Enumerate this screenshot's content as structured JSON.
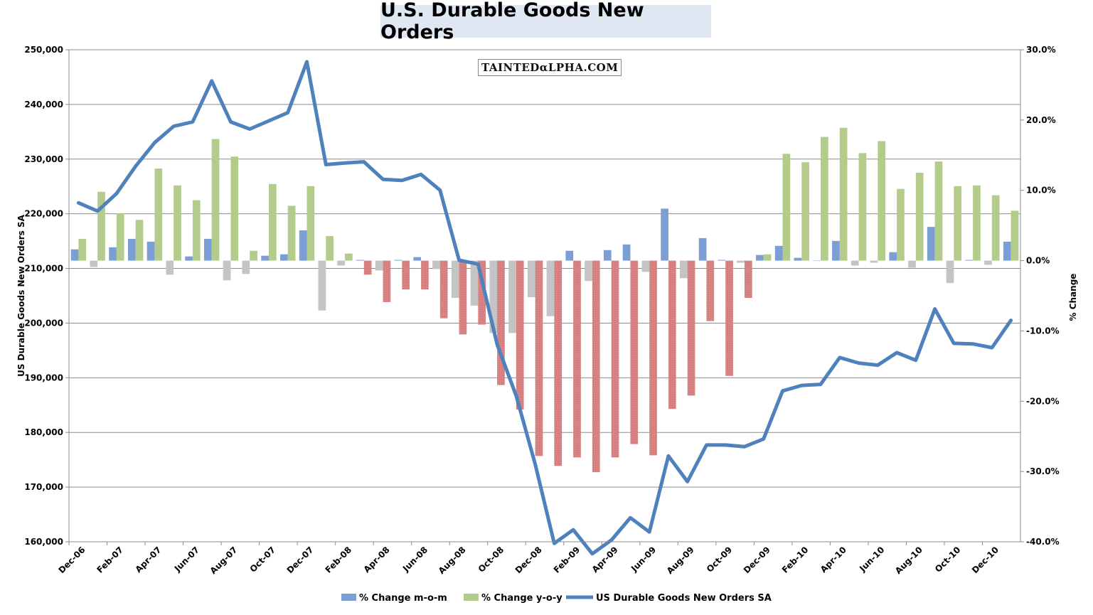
{
  "chart_data": {
    "type": "bar",
    "title": "U.S. Durable Goods New Orders",
    "ylabel": "US Durable Goods New Orders SA",
    "y2label": "% Change",
    "ylim": [
      160000,
      250000
    ],
    "y2lim": [
      -40,
      30
    ],
    "yticks": [
      "160,000",
      "170,000",
      "180,000",
      "190,000",
      "200,000",
      "210,000",
      "220,000",
      "230,000",
      "240,000",
      "250,000"
    ],
    "y2ticks": [
      "-40.0%",
      "-30.0%",
      "-20.0%",
      "-10.0%",
      "0.0%",
      "10.0%",
      "20.0%",
      "30.0%"
    ],
    "grid": true,
    "legend_position": "bottom",
    "x": [
      "Dec-06",
      "Jan-07",
      "Feb-07",
      "Mar-07",
      "Apr-07",
      "May-07",
      "Jun-07",
      "Jul-07",
      "Aug-07",
      "Sep-07",
      "Oct-07",
      "Nov-07",
      "Dec-07",
      "Jan-08",
      "Feb-08",
      "Mar-08",
      "Apr-08",
      "May-08",
      "Jun-08",
      "Jul-08",
      "Aug-08",
      "Sep-08",
      "Oct-08",
      "Nov-08",
      "Dec-08",
      "Jan-09",
      "Feb-09",
      "Mar-09",
      "Apr-09",
      "May-09",
      "Jun-09",
      "Jul-09",
      "Aug-09",
      "Sep-09",
      "Oct-09",
      "Nov-09",
      "Dec-09",
      "Jan-10",
      "Feb-10",
      "Mar-10",
      "Apr-10",
      "May-10",
      "Jun-10",
      "Jul-10",
      "Aug-10",
      "Sep-10",
      "Oct-10",
      "Nov-10",
      "Dec-10",
      "Jan-11"
    ],
    "xtick_labels": [
      "Dec-06",
      "Feb-07",
      "Apr-07",
      "Jun-07",
      "Aug-07",
      "Oct-07",
      "Dec-07",
      "Feb-08",
      "Apr-08",
      "Jun-08",
      "Aug-08",
      "Oct-08",
      "Dec-08",
      "Feb-09",
      "Apr-09",
      "Jun-09",
      "Aug-09",
      "Oct-09",
      "Dec-09",
      "Feb-10",
      "Apr-10",
      "Jun-10",
      "Aug-10",
      "Oct-10",
      "Dec-10"
    ],
    "series": [
      {
        "name": "% Change m-o-m",
        "type": "bar",
        "axis": "right",
        "values": [
          1.6,
          -0.9,
          1.9,
          3.1,
          2.7,
          -2.0,
          0.6,
          3.1,
          -2.8,
          -1.9,
          0.7,
          0.9,
          4.3,
          -7.1,
          -0.7,
          0.1,
          -1.4,
          0.1,
          0.5,
          -1.2,
          -5.3,
          -6.4,
          -10.3,
          -10.3,
          -5.2,
          -7.9,
          1.4,
          -2.9,
          1.5,
          2.3,
          -1.6,
          7.4,
          -2.5,
          3.2,
          0.1,
          -0.3,
          0.8,
          2.1,
          0.4,
          0.0,
          2.8,
          -0.7,
          -0.3,
          1.2,
          -1.0,
          4.8,
          -3.2,
          0.1,
          -0.6,
          2.7
        ],
        "colors": [
          "#7b9fd4",
          "#c4c4c4",
          "#7b9fd4",
          "#7b9fd4",
          "#7b9fd4",
          "#c4c4c4",
          "#7b9fd4",
          "#7b9fd4",
          "#c4c4c4",
          "#c4c4c4",
          "#7b9fd4",
          "#7b9fd4",
          "#7b9fd4",
          "#c4c4c4",
          "#c4c4c4",
          "#7b9fd4",
          "#c4c4c4",
          "#7b9fd4",
          "#7b9fd4",
          "#c4c4c4",
          "#c4c4c4",
          "#c4c4c4",
          "#c4c4c4",
          "#c4c4c4",
          "#c4c4c4",
          "#c4c4c4",
          "#7b9fd4",
          "#c4c4c4",
          "#7b9fd4",
          "#7b9fd4",
          "#c4c4c4",
          "#7b9fd4",
          "#c4c4c4",
          "#7b9fd4",
          "#7b9fd4",
          "#c4c4c4",
          "#7b9fd4",
          "#7b9fd4",
          "#7b9fd4",
          "#7b9fd4",
          "#7b9fd4",
          "#c4c4c4",
          "#c4c4c4",
          "#7b9fd4",
          "#c4c4c4",
          "#7b9fd4",
          "#c4c4c4",
          "#7b9fd4",
          "#c4c4c4",
          "#7b9fd4"
        ]
      },
      {
        "name": "% Change y-o-y",
        "type": "bar",
        "axis": "right",
        "values": [
          3.1,
          9.8,
          6.7,
          5.8,
          13.1,
          10.7,
          8.6,
          17.3,
          14.8,
          1.4,
          10.9,
          7.8,
          10.6,
          3.5,
          1.0,
          -2.0,
          -5.9,
          -4.1,
          -4.1,
          -8.2,
          -10.5,
          -9.1,
          -17.7,
          -21.2,
          -27.8,
          -29.2,
          -28.0,
          -30.1,
          -28.0,
          -26.1,
          -27.7,
          -21.1,
          -19.2,
          -8.6,
          -16.4,
          -5.3,
          0.9,
          15.2,
          14.0,
          17.6,
          18.9,
          15.3,
          17.0,
          10.2,
          12.5,
          14.1,
          10.6,
          10.7,
          9.3,
          7.1
        ],
        "colors": [
          "#b3cc8c",
          "#b3cc8c",
          "#b3cc8c",
          "#b3cc8c",
          "#b3cc8c",
          "#b3cc8c",
          "#b3cc8c",
          "#b3cc8c",
          "#b3cc8c",
          "#b3cc8c",
          "#b3cc8c",
          "#b3cc8c",
          "#b3cc8c",
          "#b3cc8c",
          "#b3cc8c",
          "#d98484",
          "#d98484",
          "#d98484",
          "#d98484",
          "#d98484",
          "#d98484",
          "#d98484",
          "#d98484",
          "#d98484",
          "#d98484",
          "#d98484",
          "#d98484",
          "#d98484",
          "#d98484",
          "#d98484",
          "#d98484",
          "#d98484",
          "#d98484",
          "#d98484",
          "#d98484",
          "#d98484",
          "#b3cc8c",
          "#b3cc8c",
          "#b3cc8c",
          "#b3cc8c",
          "#b3cc8c",
          "#b3cc8c",
          "#b3cc8c",
          "#b3cc8c",
          "#b3cc8c",
          "#b3cc8c",
          "#b3cc8c",
          "#b3cc8c",
          "#b3cc8c",
          "#b3cc8c"
        ]
      },
      {
        "name": "US Durable Goods New Orders SA",
        "type": "line",
        "axis": "left",
        "color": "#4f81bd",
        "values": [
          222000,
          220500,
          223700,
          228700,
          233000,
          236000,
          236800,
          244300,
          236800,
          235500,
          237000,
          238500,
          247800,
          229000,
          229300,
          229500,
          226300,
          226100,
          227200,
          224300,
          211500,
          210800,
          196100,
          186700,
          174200,
          159700,
          162200,
          157800,
          160300,
          164400,
          161800,
          175700,
          171000,
          177700,
          177700,
          177400,
          178800,
          187600,
          188600,
          188800,
          193700,
          192700,
          192300,
          194600,
          193200,
          202600,
          196300,
          196200,
          195500,
          200500
        ]
      }
    ],
    "legend_colors": {
      "mom": "#7b9fd4",
      "yoy": "#b3cc8c",
      "line": "#4f81bd"
    }
  },
  "watermark_text": "TAINTEDαLPHA.COM"
}
